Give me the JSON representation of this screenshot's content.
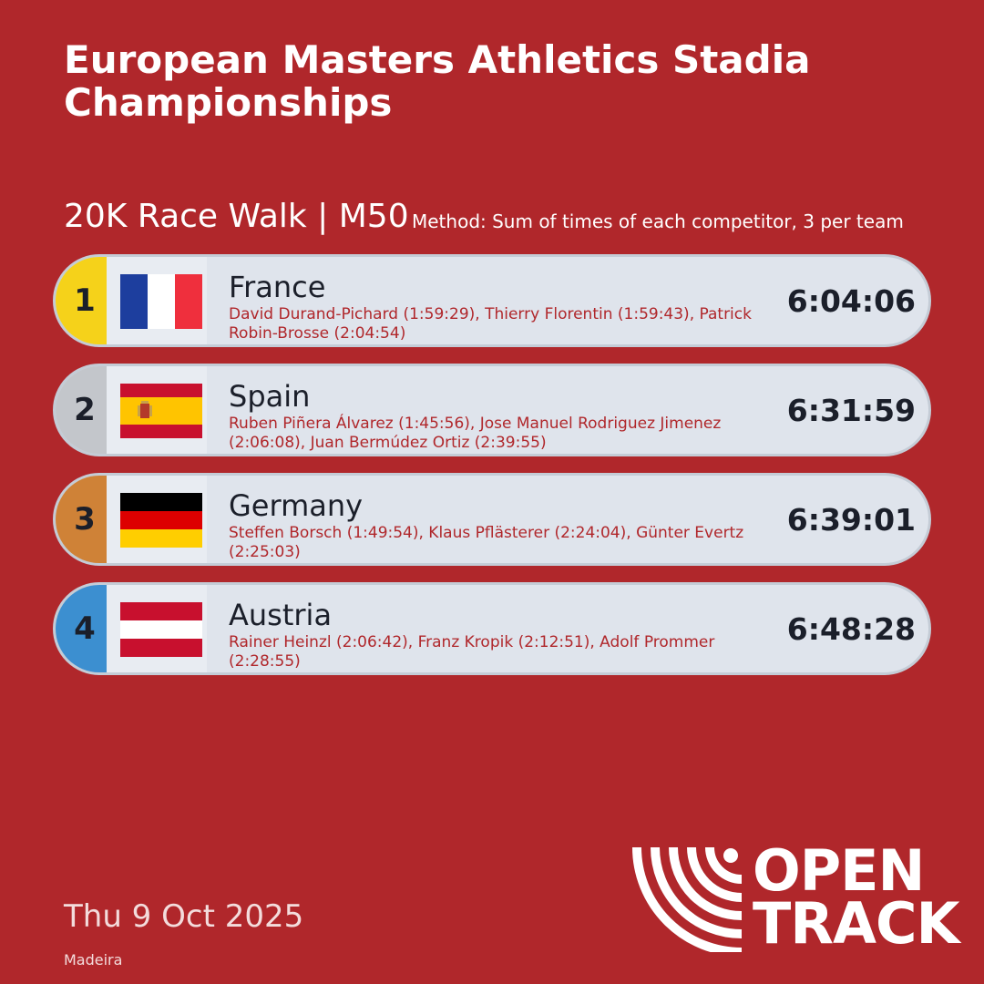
{
  "header": {
    "title": "European Masters Athletics Stadia Championships",
    "event": "20K Race Walk | M50",
    "method": "Method: Sum of times of each competitor, 3 per team"
  },
  "results": [
    {
      "rank": "1",
      "rank_color": "#f5d21a",
      "flag": "france-flag",
      "country": "France",
      "athletes": "David Durand-Pichard (1:59:29), Thierry Florentin (1:59:43), Patrick Robin-Brosse (2:04:54)",
      "time": "6:04:06"
    },
    {
      "rank": "2",
      "rank_color": "#c3c6cb",
      "flag": "spain-flag",
      "country": "Spain",
      "athletes": "Ruben Piñera Álvarez (1:45:56), Jose Manuel Rodriguez Jimenez (2:06:08), Juan Bermúdez Ortiz (2:39:55)",
      "time": "6:31:59"
    },
    {
      "rank": "3",
      "rank_color": "#cf8237",
      "flag": "germany-flag",
      "country": "Germany",
      "athletes": "Steffen Borsch (1:49:54), Klaus Pflästerer (2:24:04), Günter Evertz (2:25:03)",
      "time": "6:39:01"
    },
    {
      "rank": "4",
      "rank_color": "#3c8fd0",
      "flag": "austria-flag",
      "country": "Austria",
      "athletes": "Rainer Heinzl (2:06:42), Franz Kropik (2:12:51), Adolf Prommer (2:28:55)",
      "time": "6:48:28"
    }
  ],
  "footer": {
    "date": "Thu 9 Oct 2025",
    "venue": "Madeira",
    "brand_line1": "OPEN",
    "brand_line2": "TRACK"
  },
  "colors": {
    "background": "#b0272b",
    "card": "#dfe4ec",
    "athlete_text": "#b0272b"
  }
}
